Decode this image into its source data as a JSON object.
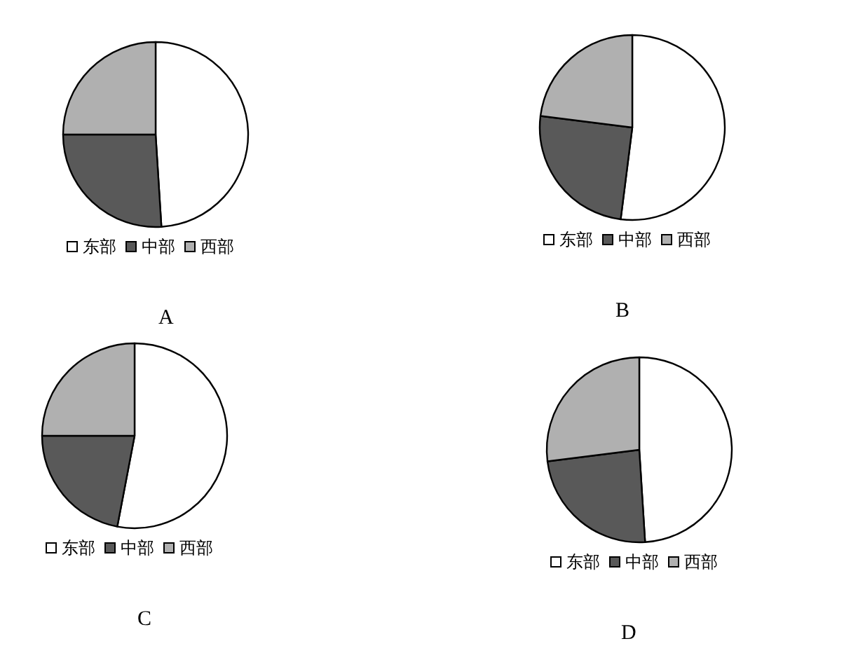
{
  "chart_data": [
    {
      "type": "pie",
      "title": "A",
      "categories": [
        "东部",
        "中部",
        "西部"
      ],
      "values": [
        49,
        26,
        25
      ],
      "colors": [
        "#ffffff",
        "#595959",
        "#b0b0b0"
      ],
      "legend": "bottom"
    },
    {
      "type": "pie",
      "title": "B",
      "categories": [
        "东部",
        "中部",
        "西部"
      ],
      "values": [
        52,
        25,
        23
      ],
      "colors": [
        "#ffffff",
        "#595959",
        "#b0b0b0"
      ],
      "legend": "bottom"
    },
    {
      "type": "pie",
      "title": "C",
      "categories": [
        "东部",
        "中部",
        "西部"
      ],
      "values": [
        53,
        22,
        25
      ],
      "colors": [
        "#ffffff",
        "#595959",
        "#b0b0b0"
      ],
      "legend": "bottom"
    },
    {
      "type": "pie",
      "title": "D",
      "categories": [
        "东部",
        "中部",
        "西部"
      ],
      "values": [
        49,
        24,
        27
      ],
      "colors": [
        "#ffffff",
        "#595959",
        "#b0b0b0"
      ],
      "legend": "bottom"
    }
  ]
}
